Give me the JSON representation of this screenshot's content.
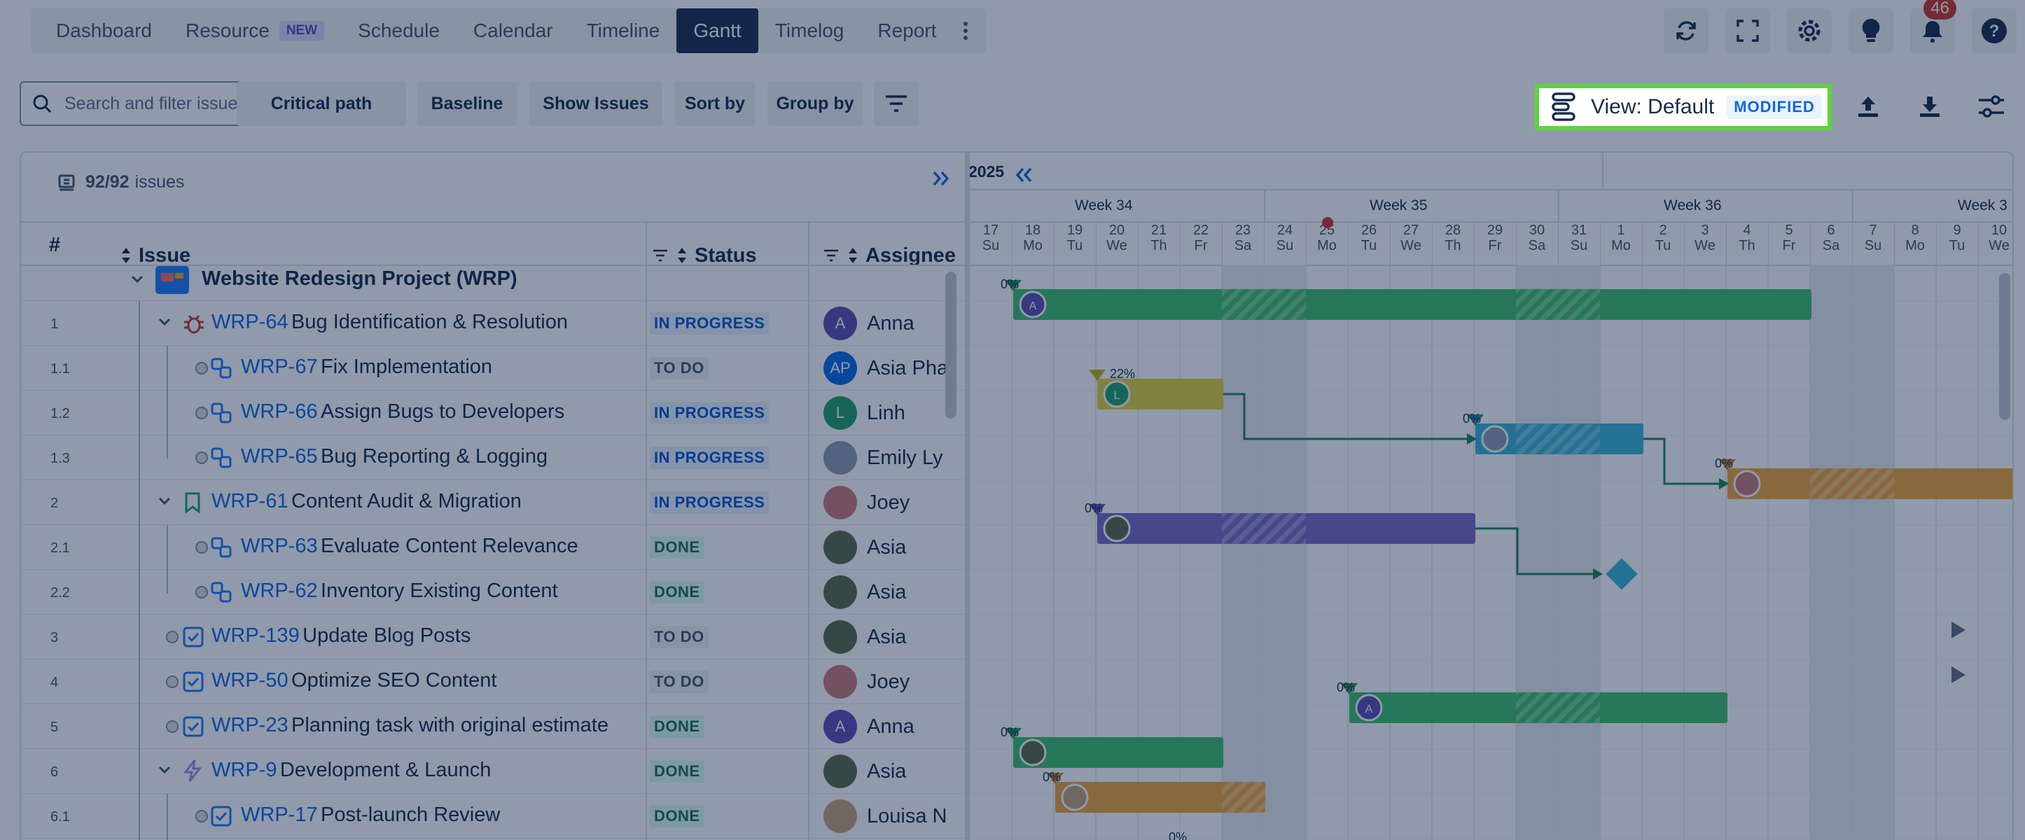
{
  "nav": {
    "tabs": [
      {
        "label": "Dashboard"
      },
      {
        "label": "Resource",
        "badge": "NEW"
      },
      {
        "label": "Schedule"
      },
      {
        "label": "Calendar"
      },
      {
        "label": "Timeline"
      },
      {
        "label": "Gantt",
        "active": true
      },
      {
        "label": "Timelog"
      },
      {
        "label": "Report"
      }
    ],
    "notifications": "46"
  },
  "toolbar": {
    "search_placeholder": "Search and filter issue",
    "critical_path": "Critical path",
    "baseline": "Baseline",
    "show_issues": "Show Issues",
    "sort_by": "Sort by",
    "group_by": "Group by",
    "view_label": "View: Default",
    "view_badge": "MODIFIED"
  },
  "grid": {
    "count": "92/92",
    "count_suffix": "issues",
    "headers": {
      "num": "#",
      "issue": "Issue",
      "status": "Status",
      "assignee": "Assignee"
    },
    "project": "Website Redesign Project  (WRP)",
    "rows": [
      {
        "num": "1",
        "key": "WRP-64",
        "summary": "Bug Identification & Resolution",
        "status": "IN PROGRESS",
        "assignee": "Anna"
      },
      {
        "num": "1.1",
        "key": "WRP-67",
        "summary": "Fix Implementation",
        "status": "TO DO",
        "assignee": "Asia Pha"
      },
      {
        "num": "1.2",
        "key": "WRP-66",
        "summary": "Assign Bugs to Developers",
        "status": "IN PROGRESS",
        "assignee": "Linh"
      },
      {
        "num": "1.3",
        "key": "WRP-65",
        "summary": "Bug Reporting & Logging",
        "status": "IN PROGRESS",
        "assignee": "Emily Ly"
      },
      {
        "num": "2",
        "key": "WRP-61",
        "summary": "Content Audit & Migration",
        "status": "IN PROGRESS",
        "assignee": "Joey"
      },
      {
        "num": "2.1",
        "key": "WRP-63",
        "summary": "Evaluate Content Relevance",
        "status": "DONE",
        "assignee": "Asia"
      },
      {
        "num": "2.2",
        "key": "WRP-62",
        "summary": "Inventory Existing Content",
        "status": "DONE",
        "assignee": "Asia"
      },
      {
        "num": "3",
        "key": "WRP-139",
        "summary": "Update Blog Posts",
        "status": "TO DO",
        "assignee": "Asia"
      },
      {
        "num": "4",
        "key": "WRP-50",
        "summary": "Optimize SEO Content",
        "status": "TO DO",
        "assignee": "Joey"
      },
      {
        "num": "5",
        "key": "WRP-23",
        "summary": "Planning task with original estimate",
        "status": "DONE",
        "assignee": "Anna"
      },
      {
        "num": "6",
        "key": "WRP-9",
        "summary": "Development & Launch",
        "status": "DONE",
        "assignee": "Asia"
      },
      {
        "num": "6.1",
        "key": "WRP-17",
        "summary": "Post-launch Review",
        "status": "DONE",
        "assignee": "Louisa N"
      }
    ]
  },
  "gantt": {
    "year": "2025",
    "weeks": [
      "Week 34",
      "Week 35",
      "Week 36",
      "Week 3"
    ],
    "days": [
      {
        "d": "17",
        "w": "Su"
      },
      {
        "d": "18",
        "w": "Mo"
      },
      {
        "d": "19",
        "w": "Tu"
      },
      {
        "d": "20",
        "w": "We"
      },
      {
        "d": "21",
        "w": "Th"
      },
      {
        "d": "22",
        "w": "Fr"
      },
      {
        "d": "23",
        "w": "Sa"
      },
      {
        "d": "24",
        "w": "Su"
      },
      {
        "d": "25",
        "w": "Mo"
      },
      {
        "d": "26",
        "w": "Tu"
      },
      {
        "d": "27",
        "w": "We"
      },
      {
        "d": "28",
        "w": "Th"
      },
      {
        "d": "29",
        "w": "Fr"
      },
      {
        "d": "30",
        "w": "Sa"
      },
      {
        "d": "31",
        "w": "Su"
      },
      {
        "d": "1",
        "w": "Mo"
      },
      {
        "d": "2",
        "w": "Tu"
      },
      {
        "d": "3",
        "w": "We"
      },
      {
        "d": "4",
        "w": "Th"
      },
      {
        "d": "5",
        "w": "Fr"
      },
      {
        "d": "6",
        "w": "Sa"
      },
      {
        "d": "7",
        "w": "Su"
      },
      {
        "d": "8",
        "w": "Mo"
      },
      {
        "d": "9",
        "w": "Tu"
      },
      {
        "d": "10",
        "w": "We"
      }
    ],
    "bars": [
      {
        "pct": "0%",
        "color": "#3fbf6e"
      },
      {
        "pct": "22%",
        "color": "#e3d33f"
      },
      {
        "pct": "0%",
        "color": "#3ab7d6"
      },
      {
        "pct": "0%",
        "color": "#f0a63a"
      },
      {
        "pct": "0%",
        "color": "#7a69c9"
      },
      {
        "pct": "0%",
        "color": "#3fbf6e"
      },
      {
        "pct": "0%",
        "color": "#3fbf6e"
      },
      {
        "pct": "0%",
        "color": "#f0a63a"
      },
      {
        "pct": "0%"
      }
    ]
  }
}
